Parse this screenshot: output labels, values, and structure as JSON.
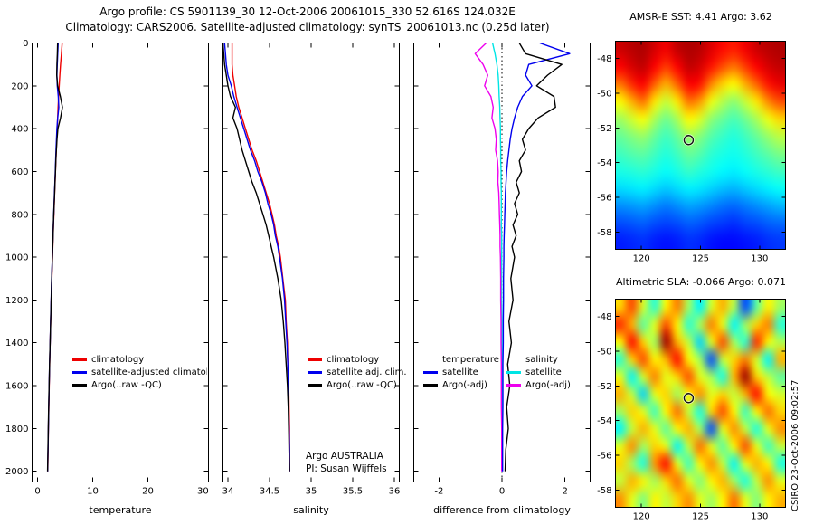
{
  "header": {
    "title_line1": "Argo profile: CS 5901139_30 12-Oct-2006 20061015_330 52.616S 124.032E",
    "title_line2": "Climatology: CARS2006. Satellite-adjusted climatology: synTS_20061013.nc (0.25d later)"
  },
  "watermark": "CSIRO 23-Oct-2006 09:02:57",
  "chart_data": [
    {
      "id": "temperature_profile",
      "type": "line",
      "xlabel": "temperature",
      "xlim": [
        -1,
        31
      ],
      "xticks": [
        0,
        10,
        20,
        30
      ],
      "ylim": [
        0,
        2050
      ],
      "yticks": [
        0,
        200,
        400,
        600,
        800,
        1000,
        1200,
        1400,
        1600,
        1800,
        2000
      ],
      "legend": [
        {
          "label": "climatology",
          "color": "#ee0000"
        },
        {
          "label": "satellite-adjusted climatology",
          "color": "#0000ee"
        },
        {
          "label": "Argo(..raw -QC)",
          "color": "#000000"
        }
      ],
      "depths": [
        0,
        50,
        100,
        150,
        200,
        250,
        300,
        350,
        400,
        450,
        500,
        550,
        600,
        650,
        700,
        750,
        800,
        850,
        900,
        950,
        1000,
        1100,
        1200,
        1300,
        1400,
        1500,
        1600,
        1700,
        1800,
        1900,
        2000
      ],
      "series": [
        {
          "name": "climatology",
          "color": "#ee0000",
          "values": [
            4.45,
            4.32,
            4.16,
            4.02,
            3.9,
            3.8,
            3.71,
            3.62,
            3.54,
            3.46,
            3.38,
            3.31,
            3.24,
            3.16,
            3.09,
            3.02,
            2.95,
            2.88,
            2.81,
            2.75,
            2.69,
            2.57,
            2.46,
            2.36,
            2.27,
            2.18,
            2.1,
            2.03,
            1.96,
            1.9,
            1.84
          ]
        },
        {
          "name": "satellite-adjusted climatology",
          "color": "#0000ee",
          "values": [
            3.72,
            3.64,
            3.56,
            3.5,
            3.56,
            3.74,
            3.84,
            3.64,
            3.5,
            3.42,
            3.34,
            3.27,
            3.2,
            3.13,
            3.06,
            2.99,
            2.92,
            2.85,
            2.79,
            2.73,
            2.67,
            2.55,
            2.45,
            2.35,
            2.26,
            2.17,
            2.09,
            2.02,
            1.95,
            1.89,
            1.83
          ]
        },
        {
          "name": "Argo(..raw -QC)",
          "color": "#000000",
          "values": [
            3.62,
            3.58,
            3.5,
            3.46,
            3.62,
            4.12,
            4.5,
            4.15,
            3.68,
            3.52,
            3.4,
            3.3,
            3.24,
            3.15,
            3.08,
            3.0,
            2.93,
            2.86,
            2.8,
            2.74,
            2.68,
            2.56,
            2.46,
            2.36,
            2.26,
            2.17,
            2.08,
            2.01,
            1.94,
            1.87,
            1.8
          ]
        }
      ]
    },
    {
      "id": "salinity_profile",
      "type": "line",
      "xlabel": "salinity",
      "xlim": [
        33.94,
        36.06
      ],
      "xticks": [
        34,
        34.5,
        35,
        35.5,
        36
      ],
      "ylim": [
        0,
        2050
      ],
      "yticks": [
        0,
        200,
        400,
        600,
        800,
        1000,
        1200,
        1400,
        1600,
        1800,
        2000
      ],
      "legend": [
        {
          "label": "climatology",
          "color": "#ee0000"
        },
        {
          "label": "satellite adj. clim.",
          "color": "#0000ee"
        },
        {
          "label": "Argo(..raw -QC)",
          "color": "#000000"
        }
      ],
      "annotations": [
        "Argo AUSTRALIA",
        "PI: Susan Wijffels"
      ],
      "depths": [
        0,
        50,
        100,
        150,
        200,
        250,
        300,
        350,
        400,
        450,
        500,
        550,
        600,
        650,
        700,
        750,
        800,
        850,
        900,
        950,
        1000,
        1100,
        1200,
        1300,
        1400,
        1500,
        1600,
        1700,
        1800,
        1900,
        2000
      ],
      "series": [
        {
          "name": "climatology",
          "color": "#ee0000",
          "values": [
            34.05,
            34.05,
            34.05,
            34.06,
            34.08,
            34.1,
            34.13,
            34.17,
            34.21,
            34.25,
            34.29,
            34.34,
            34.38,
            34.42,
            34.46,
            34.5,
            34.53,
            34.56,
            34.58,
            34.61,
            34.63,
            34.66,
            34.69,
            34.7,
            34.715,
            34.72,
            34.73,
            34.735,
            34.74,
            34.74,
            34.74
          ]
        },
        {
          "name": "satellite adj. clim.",
          "color": "#0000ee",
          "values": [
            33.96,
            33.97,
            33.98,
            34.0,
            34.04,
            34.07,
            34.11,
            34.15,
            34.19,
            34.23,
            34.27,
            34.32,
            34.36,
            34.41,
            34.45,
            34.48,
            34.52,
            34.55,
            34.57,
            34.6,
            34.62,
            34.655,
            34.68,
            34.695,
            34.71,
            34.72,
            34.725,
            34.73,
            34.735,
            34.74,
            34.74
          ]
        },
        {
          "name": "Argo(..raw -QC)",
          "color": "#000000",
          "values": [
            33.94,
            33.95,
            33.96,
            33.98,
            34.0,
            34.03,
            34.09,
            34.06,
            34.11,
            34.14,
            34.17,
            34.21,
            34.25,
            34.29,
            34.34,
            34.38,
            34.42,
            34.46,
            34.49,
            34.52,
            34.55,
            34.6,
            34.64,
            34.665,
            34.685,
            34.7,
            34.715,
            34.725,
            34.73,
            34.735,
            34.74
          ]
        }
      ]
    },
    {
      "id": "difference_profile",
      "type": "line",
      "xlabel": "difference from climatology",
      "xlim": [
        -2.8,
        2.8
      ],
      "xticks": [
        -2,
        0,
        2
      ],
      "ylim": [
        0,
        2050
      ],
      "yticks": [
        0,
        200,
        400,
        600,
        800,
        1000,
        1200,
        1400,
        1600,
        1800,
        2000
      ],
      "zero_line": true,
      "legend_groups": [
        {
          "header": "temperature",
          "items": [
            {
              "label": "satellite",
              "color": "#0000ee"
            },
            {
              "label": "Argo(-adj)",
              "color": "#000000"
            }
          ]
        },
        {
          "header": "salinity",
          "items": [
            {
              "label": "satellite",
              "color": "#00e5e5"
            },
            {
              "label": "Argo(-adj)",
              "color": "#ee00ee"
            }
          ]
        }
      ],
      "depths": [
        0,
        50,
        100,
        150,
        200,
        250,
        300,
        350,
        400,
        450,
        500,
        550,
        600,
        650,
        700,
        750,
        800,
        850,
        900,
        950,
        1000,
        1100,
        1200,
        1300,
        1400,
        1500,
        1600,
        1700,
        1800,
        1900,
        2000
      ],
      "series": [
        {
          "name": "salinity satellite",
          "color": "#00e5e5",
          "values": [
            -0.3,
            -0.22,
            -0.16,
            -0.12,
            -0.1,
            -0.09,
            -0.07,
            -0.06,
            -0.05,
            -0.05,
            -0.04,
            -0.04,
            -0.03,
            -0.03,
            -0.02,
            -0.02,
            -0.02,
            -0.02,
            -0.01,
            -0.01,
            -0.01,
            -0.01,
            -0.01,
            0.0,
            0.0,
            0.0,
            0.0,
            0.0,
            0.0,
            0.0,
            0.0
          ]
        },
        {
          "name": "salinity Argo(-adj)",
          "color": "#ee00ee",
          "values": [
            -0.5,
            -0.85,
            -0.6,
            -0.45,
            -0.55,
            -0.35,
            -0.28,
            -0.32,
            -0.22,
            -0.18,
            -0.2,
            -0.14,
            -0.12,
            -0.13,
            -0.1,
            -0.09,
            -0.08,
            -0.07,
            -0.06,
            -0.06,
            -0.05,
            -0.04,
            -0.04,
            -0.03,
            -0.03,
            -0.02,
            -0.02,
            -0.02,
            -0.01,
            -0.01,
            -0.01
          ]
        },
        {
          "name": "temperature satellite",
          "color": "#0000ee",
          "values": [
            1.2,
            2.15,
            0.85,
            0.75,
            0.95,
            0.65,
            0.5,
            0.4,
            0.32,
            0.26,
            0.22,
            0.18,
            0.15,
            0.13,
            0.11,
            0.1,
            0.09,
            0.08,
            0.07,
            0.06,
            0.06,
            0.05,
            0.05,
            0.04,
            0.04,
            0.03,
            0.03,
            0.03,
            0.02,
            0.02,
            0.02
          ]
        },
        {
          "name": "temperature Argo(-adj)",
          "color": "#000000",
          "values": [
            0.55,
            0.75,
            1.9,
            1.45,
            1.1,
            1.65,
            1.7,
            1.15,
            0.85,
            0.65,
            0.75,
            0.55,
            0.62,
            0.45,
            0.55,
            0.4,
            0.5,
            0.35,
            0.45,
            0.32,
            0.4,
            0.28,
            0.35,
            0.22,
            0.3,
            0.18,
            0.25,
            0.15,
            0.2,
            0.12,
            0.1
          ]
        }
      ]
    },
    {
      "id": "sst_map",
      "type": "heatmap",
      "title": "AMSR-E SST: 4.41  Argo: 3.62",
      "xlim": [
        117.8,
        132.2
      ],
      "xticks": [
        120,
        125,
        130
      ],
      "ylim": [
        -47,
        -59
      ],
      "yticks": [
        -48,
        -50,
        -52,
        -54,
        -56,
        -58
      ],
      "marker": {
        "lon": 124,
        "lat": -52.7
      },
      "grid": {
        "colormap": "jet",
        "cmin": 0,
        "cmax": 10.5,
        "values": [
          [
            9.7,
            9.9,
            10.0,
            9.6,
            9.3,
            9.8,
            10.0,
            9.9,
            9.5,
            9.1,
            8.9,
            9.3,
            9.7,
            9.9,
            10.0
          ],
          [
            9.2,
            9.6,
            9.8,
            9.2,
            8.6,
            9.2,
            9.8,
            9.6,
            9.0,
            8.4,
            8.0,
            8.6,
            9.2,
            9.6,
            9.8
          ],
          [
            8.0,
            8.8,
            9.2,
            8.2,
            7.4,
            8.2,
            9.2,
            9.0,
            7.8,
            7.0,
            6.6,
            7.4,
            8.2,
            9.0,
            9.4
          ],
          [
            6.6,
            7.4,
            8.0,
            6.8,
            6.0,
            6.8,
            8.0,
            7.6,
            6.4,
            5.8,
            5.4,
            6.0,
            6.8,
            7.8,
            8.4
          ],
          [
            5.6,
            6.1,
            6.5,
            5.7,
            5.1,
            5.7,
            6.6,
            6.2,
            5.4,
            5.0,
            4.7,
            5.1,
            5.7,
            6.4,
            7.0
          ],
          [
            5.0,
            5.3,
            5.5,
            5.0,
            4.6,
            5.0,
            5.6,
            5.3,
            4.8,
            4.5,
            4.3,
            4.6,
            5.0,
            5.5,
            5.9
          ],
          [
            4.6,
            4.8,
            4.9,
            4.6,
            4.3,
            4.6,
            5.0,
            4.8,
            4.4,
            4.2,
            4.1,
            4.3,
            4.6,
            4.9,
            5.2
          ],
          [
            4.2,
            4.3,
            4.4,
            4.2,
            4.0,
            4.2,
            4.5,
            4.3,
            4.1,
            3.9,
            3.8,
            4.0,
            4.2,
            4.4,
            4.6
          ],
          [
            3.6,
            3.7,
            3.8,
            3.6,
            3.4,
            3.6,
            3.8,
            3.7,
            3.5,
            3.3,
            3.2,
            3.4,
            3.6,
            3.8,
            4.0
          ],
          [
            2.8,
            2.9,
            3.0,
            2.8,
            2.6,
            2.8,
            3.0,
            2.9,
            2.7,
            2.5,
            2.4,
            2.6,
            2.8,
            3.0,
            3.2
          ],
          [
            2.1,
            2.2,
            2.3,
            2.1,
            2.0,
            2.1,
            2.3,
            2.2,
            2.0,
            1.9,
            1.8,
            2.0,
            2.1,
            2.3,
            2.4
          ],
          [
            1.6,
            1.7,
            1.8,
            1.6,
            1.5,
            1.6,
            1.8,
            1.7,
            1.5,
            1.4,
            1.4,
            1.5,
            1.6,
            1.8,
            1.9
          ]
        ]
      }
    },
    {
      "id": "sla_map",
      "type": "heatmap",
      "title": "Altimetric SLA: -0.066  Argo: 0.071",
      "xlim": [
        117.8,
        132.2
      ],
      "xticks": [
        120,
        125,
        130
      ],
      "ylim": [
        -47,
        -59
      ],
      "yticks": [
        -48,
        -50,
        -52,
        -54,
        -56,
        -58
      ],
      "marker": {
        "lon": 124,
        "lat": -52.7
      },
      "grid": {
        "colormap": "jet",
        "cmin": -0.3,
        "cmax": 0.3,
        "values": [
          [
            0.1,
            0.18,
            0.05,
            -0.05,
            0.08,
            0.15,
            0.02,
            -0.08,
            0.05,
            0.12,
            0.03,
            -0.18,
            -0.02,
            0.08,
            0.02
          ],
          [
            0.2,
            0.12,
            -0.02,
            0.06,
            0.18,
            0.08,
            -0.05,
            0.03,
            0.15,
            0.06,
            -0.08,
            0.02,
            0.1,
            0.15,
            -0.05
          ],
          [
            0.08,
            0.22,
            0.1,
            0.02,
            0.28,
            0.12,
            0.04,
            -0.1,
            0.06,
            0.18,
            0.02,
            -0.05,
            0.2,
            0.08,
            0.03
          ],
          [
            -0.05,
            0.1,
            0.18,
            0.08,
            0.12,
            0.22,
            0.08,
            0.02,
            -0.18,
            0.04,
            0.1,
            0.15,
            0.05,
            -0.08,
            0.12
          ],
          [
            0.06,
            -0.08,
            0.05,
            0.15,
            0.06,
            0.1,
            0.18,
            0.06,
            0.02,
            -0.06,
            0.12,
            0.28,
            0.1,
            0.04,
            -0.02
          ],
          [
            0.12,
            0.04,
            -0.1,
            0.06,
            0.1,
            0.02,
            0.08,
            0.14,
            0.06,
            0.1,
            0.04,
            0.12,
            0.22,
            0.08,
            0.05
          ],
          [
            0.02,
            0.1,
            0.06,
            -0.04,
            0.08,
            0.16,
            0.04,
            -0.06,
            0.1,
            0.18,
            0.08,
            -0.04,
            0.08,
            0.16,
            0.1
          ],
          [
            -0.08,
            0.04,
            0.12,
            0.06,
            -0.02,
            0.08,
            0.12,
            0.02,
            -0.18,
            0.06,
            0.14,
            0.04,
            -0.06,
            0.06,
            0.14
          ],
          [
            0.06,
            0.14,
            0.02,
            0.1,
            0.06,
            -0.08,
            0.04,
            0.16,
            0.06,
            -0.02,
            0.08,
            0.18,
            0.06,
            -0.04,
            0.04
          ],
          [
            0.1,
            0.02,
            -0.06,
            0.14,
            0.22,
            0.06,
            -0.04,
            0.08,
            0.14,
            0.04,
            -0.08,
            0.06,
            0.12,
            0.08,
            -0.06
          ],
          [
            0.04,
            0.12,
            0.08,
            0.02,
            0.1,
            0.16,
            0.06,
            0.0,
            0.08,
            0.12,
            0.02,
            -0.06,
            0.04,
            0.14,
            0.06
          ],
          [
            0.14,
            0.06,
            0.0,
            0.08,
            0.04,
            0.1,
            0.14,
            0.06,
            0.02,
            0.08,
            0.16,
            0.06,
            0.0,
            0.08,
            0.12
          ]
        ]
      }
    }
  ]
}
